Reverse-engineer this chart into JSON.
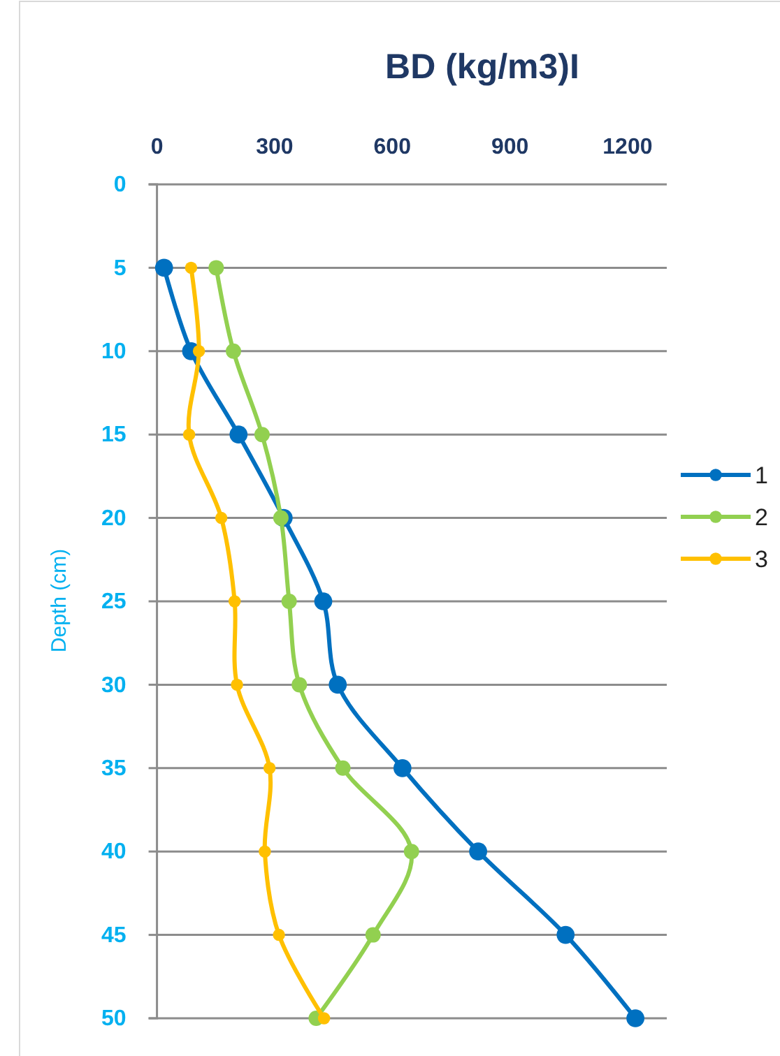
{
  "chart_data": {
    "type": "line",
    "title": "BD (kg/m3)I",
    "ylabel": "Depth (cm)",
    "xlim": [
      0,
      1300
    ],
    "xticks": [
      0,
      300,
      600,
      900,
      1200
    ],
    "ylim": [
      50,
      0
    ],
    "yticks": [
      0,
      5,
      10,
      15,
      20,
      25,
      30,
      35,
      40,
      45,
      50
    ],
    "grid": "y",
    "legend": "right",
    "marker": "circle",
    "series": [
      {
        "name": "1",
        "color": "#0070c0",
        "x": [
          18,
          87,
          208,
          323,
          424,
          461,
          626,
          819,
          1042,
          1220
        ],
        "values": [
          5,
          10,
          15,
          20,
          25,
          30,
          35,
          40,
          45,
          50
        ]
      },
      {
        "name": "2",
        "color": "#92d050",
        "x": [
          151,
          195,
          268,
          316,
          337,
          363,
          474,
          649,
          551,
          406
        ],
        "values": [
          5,
          10,
          15,
          20,
          25,
          30,
          35,
          40,
          45,
          50
        ]
      },
      {
        "name": "3",
        "color": "#ffc000",
        "x": [
          87,
          107,
          82,
          164,
          198,
          204,
          287,
          275,
          311,
          426
        ],
        "values": [
          5,
          10,
          15,
          20,
          25,
          30,
          35,
          40,
          45,
          50
        ]
      }
    ]
  }
}
